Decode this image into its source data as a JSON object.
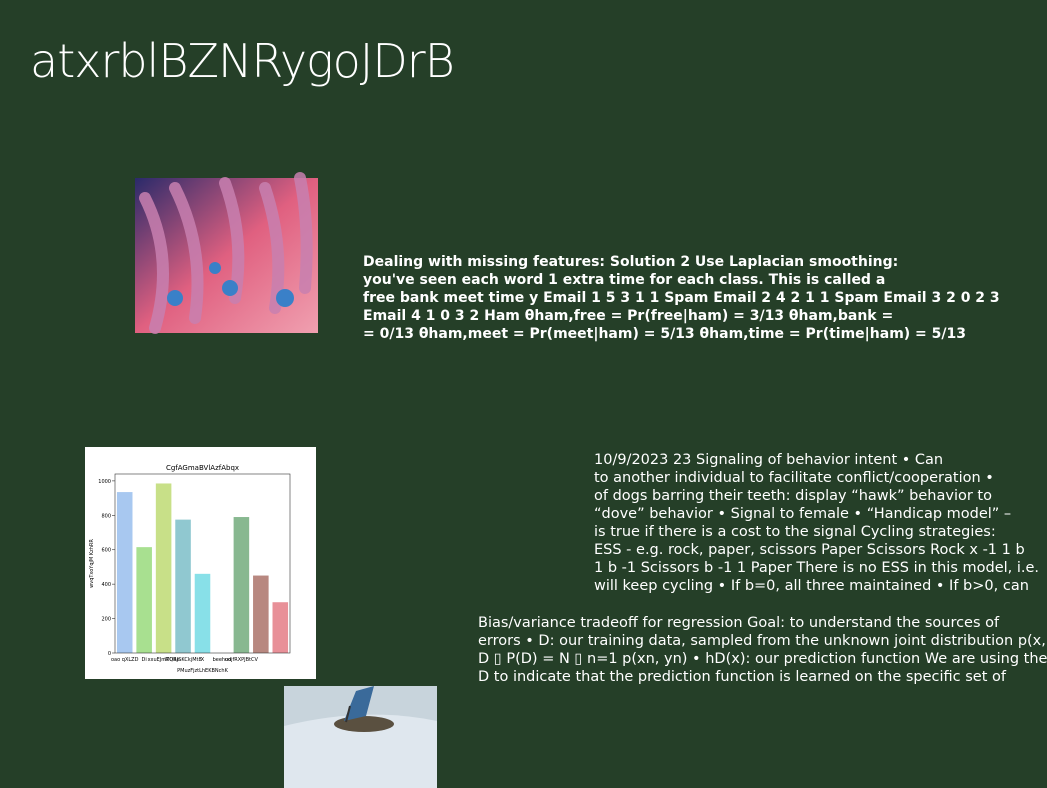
{
  "title": "atxrblBZNRygoJDrB",
  "block1": [
    "Dealing with missing features: Solution 2 Use Laplacian smoothing:",
    "you've seen each word 1 extra time for each class. This is called a",
    "free bank meet time y Email 1 5 3 1 1 Spam Email 2 4 2 1 1 Spam Email 3 2 0 2 3",
    "Email 4 1 0 3 2 Ham θham,free = Pr(free|ham) = 3/13 θham,bank =",
    "= 0/13 θham,meet = Pr(meet|ham) = 5/13 θham,time = Pr(time|ham) = 5/13"
  ],
  "block2": [
    "10/9/2023 23 Signaling of behavior intent • Can",
    "to another individual to facilitate conflict/cooperation •",
    "of dogs barring their teeth: display “hawk” behavior to",
    "“dove” behavior • Signal to female • “Handicap model” –",
    "is true if there is a cost to the signal Cycling strategies:",
    "ESS - e.g. rock, paper, scissors Paper Scissors Rock x -1 1 b",
    "1 b -1 Scissors b -1 1 Paper There is no ESS in this model, i.e.",
    "will keep cycling • If b=0, all three maintained • If b>0, can"
  ],
  "block3": [
    "Bias/variance tradeoff for regression Goal: to understand the sources of",
    "errors • D: our training data, sampled from the unknown joint distribution p(x,",
    "D ▯ P(D) = N ▯ n=1 p(xn, yn) • hD(x): our prediction function We are using the",
    "D to indicate that the prediction function is learned on the specific set of"
  ],
  "chart_data": {
    "type": "bar",
    "title": "CgfAGmaBVlAzfAbqx",
    "y_label": "wvqTxoYqjM KzhRR",
    "x_label": "PMuzFjztLhEKBNchK",
    "categories": [
      "oao qXLZD",
      "Di",
      "xxuEJmTQBe",
      "IRORJSKCkjMt8",
      "X",
      "beehuo",
      "odjfRXPJBtCV",
      "",
      null
    ],
    "values": [
      935,
      615,
      985,
      775,
      460,
      0,
      790,
      450,
      295
    ],
    "colors": [
      "#a8c8f0",
      "#a8e090",
      "#c8e088",
      "#90c8d0",
      "#88e0e8",
      "#d0a0e0",
      "#88b890",
      "#b88880",
      "#e89098"
    ],
    "ylim": [
      0,
      1040
    ],
    "yticks": [
      0,
      200,
      400,
      600,
      800,
      1000
    ]
  }
}
